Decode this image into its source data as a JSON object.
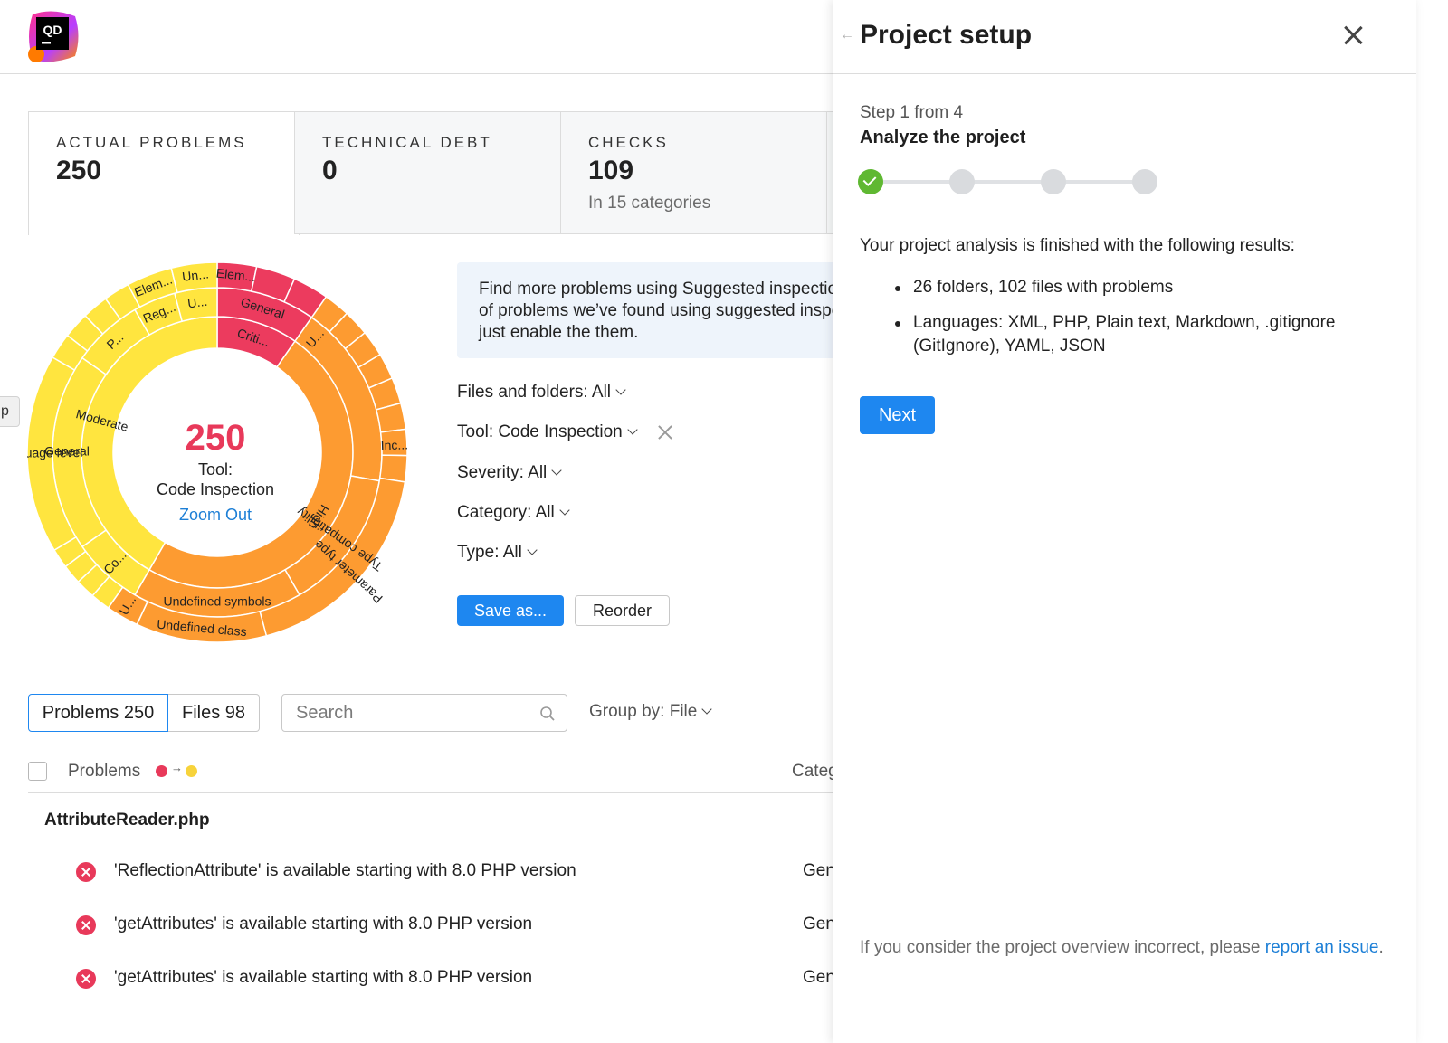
{
  "app": {
    "logo_text": "QD"
  },
  "cards": [
    {
      "label": "ACTUAL PROBLEMS",
      "value": "250",
      "sub": ""
    },
    {
      "label": "TECHNICAL DEBT",
      "value": "0",
      "sub": ""
    },
    {
      "label": "CHECKS",
      "value": "109",
      "sub": "In 15 categories"
    }
  ],
  "sunburst": {
    "total": "250",
    "tool_line1": "Tool:",
    "tool_line2": "Code Inspection",
    "zoom_out": "Zoom Out",
    "labels": {
      "moderate": "Moderate",
      "high": "High",
      "criti": "Criti...",
      "general_inner": "General",
      "language_level": "Language level",
      "p": "P...",
      "co": "Co...",
      "undefined_symbols": "Undefined symbols",
      "type_compatibility": "Type compatibility",
      "reg": "Reg...",
      "u1": "U...",
      "elem1": "Elem...",
      "un": "Un...",
      "elem2": "Elem...",
      "general_red": "General",
      "u2": "U...",
      "inc": "Inc...",
      "parameter_type": "Parameter type",
      "undefined_class": "Undefined class",
      "u3": "U..."
    },
    "colors": {
      "critical": "#ec3b5e",
      "high": "#fd9b31",
      "moderate": "#ffe53f"
    }
  },
  "side_tab": {
    "label": "p"
  },
  "suggestion": {
    "line1": "Find more problems using Suggested inspections. Our analysis",
    "line2": "of problems we’ve found using suggested inspections shows that",
    "line3": "just enable the them."
  },
  "filters": {
    "files": "Files and folders: All",
    "tool": "Tool: Code Inspection",
    "severity": "Severity: All",
    "category": "Category: All",
    "type": "Type: All"
  },
  "buttons": {
    "save_as": "Save as...",
    "reorder": "Reorder"
  },
  "list_tabs": {
    "problems": "Problems 250",
    "files": "Files 98"
  },
  "search": {
    "placeholder": "Search",
    "value": ""
  },
  "group_by": "Group by: File",
  "table": {
    "col_problems": "Problems",
    "col_category": "Category",
    "sort_from_color": "#e8395a",
    "sort_to_color": "#f7d33b",
    "file": "AttributeReader.php",
    "rows": [
      {
        "text": "'ReflectionAttribute' is available starting with 8.0 PHP version",
        "category": "General"
      },
      {
        "text": "'getAttributes' is available starting with 8.0 PHP version",
        "category": "General"
      },
      {
        "text": "'getAttributes' is available starting with 8.0 PHP version",
        "category": "General"
      }
    ]
  },
  "panel": {
    "title": "Project setup",
    "step_count": "Step 1 from 4",
    "step_title": "Analyze the project",
    "steps_total": 4,
    "steps_done": 1,
    "result_intro": "Your project analysis is finished with the following results:",
    "results": [
      "26 folders, 102 files with problems",
      "Languages: XML, PHP, Plain text, Markdown, .gitignore (GitIgnore), YAML, JSON"
    ],
    "next_label": "Next",
    "footer_text": "If you consider the project overview incorrect, please ",
    "footer_link": "report an issue",
    "footer_end": "."
  }
}
